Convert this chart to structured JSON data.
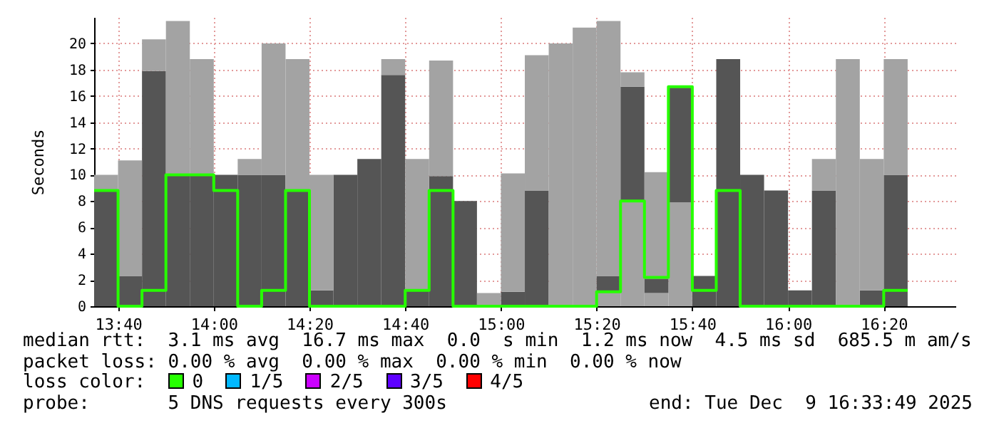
{
  "chart_data": {
    "type": "bar",
    "stacked": true,
    "ylabel": "Seconds",
    "legend_title": "loss color:",
    "legend": "bottom",
    "grid": true,
    "x": [
      13.625,
      13.7083,
      13.7917,
      13.875,
      13.9583,
      14.0417,
      14.125,
      14.2083,
      14.2917,
      14.375,
      14.4583,
      14.5417,
      14.625,
      14.7083,
      14.7917,
      14.875,
      14.9583,
      15.0417,
      15.125,
      15.2083,
      15.2917,
      15.375,
      15.4583,
      15.5417,
      15.625,
      15.7083,
      15.7917,
      15.875,
      15.9583,
      16.0417,
      16.125,
      16.2083,
      16.2917,
      16.375
    ],
    "xlim": [
      13.5833,
      16.5833
    ],
    "xticks": [
      {
        "value": 13.6667,
        "label": "13:40"
      },
      {
        "value": 14,
        "label": "14:00"
      },
      {
        "value": 14.3333,
        "label": "14:20"
      },
      {
        "value": 14.6667,
        "label": "14:40"
      },
      {
        "value": 15,
        "label": "15:00"
      },
      {
        "value": 15.3333,
        "label": "15:20"
      },
      {
        "value": 15.6667,
        "label": "15:40"
      },
      {
        "value": 16,
        "label": "16:00"
      },
      {
        "value": 16.3333,
        "label": "16:20"
      }
    ],
    "ylim": [
      0,
      22
    ],
    "yticks": [
      0,
      2,
      4,
      6,
      8,
      10,
      12,
      14,
      16,
      18,
      20
    ],
    "series": [
      {
        "color": "#555555",
        "values": [
          8.8,
          2.3,
          17.9,
          10.0,
          10.0,
          10.0,
          10.0,
          10.0,
          8.8,
          1.2,
          10.0,
          11.2,
          17.6,
          1.2,
          9.9,
          8.0,
          null,
          1.1,
          8.8,
          null,
          null,
          null,
          null,
          null,
          null,
          2.3,
          18.8,
          10.0,
          8.8,
          1.2,
          8.8,
          null,
          1.2,
          10.0
        ]
      },
      {
        "color": "#a3a3a3",
        "values": [
          1.2,
          8.8,
          2.4,
          11.7,
          8.8,
          null,
          1.2,
          10.0,
          10.0,
          8.8,
          null,
          null,
          1.2,
          10.0,
          8.8,
          null,
          1.0,
          9.0,
          10.3,
          20.0,
          21.2,
          1.1,
          8.0,
          1.0,
          7.9,
          null,
          null,
          null,
          null,
          null,
          2.4,
          18.8,
          10.0,
          8.8
        ]
      },
      {
        "color": "#555555",
        "values": [
          null,
          null,
          null,
          null,
          null,
          null,
          null,
          null,
          null,
          null,
          null,
          null,
          null,
          null,
          null,
          null,
          null,
          null,
          null,
          null,
          null,
          1.2,
          8.7,
          1.1,
          8.8,
          null,
          null,
          null,
          null,
          null,
          null,
          null,
          null,
          null
        ]
      },
      {
        "color": "#a3a3a3",
        "values": [
          null,
          null,
          null,
          null,
          null,
          null,
          null,
          null,
          null,
          null,
          null,
          null,
          null,
          null,
          null,
          null,
          null,
          null,
          null,
          null,
          null,
          19.4,
          1.1,
          8.1,
          null,
          null,
          null,
          null,
          null,
          null,
          null,
          null,
          null,
          null
        ]
      },
      {
        "type": "step",
        "name": "0",
        "color": "#26ff00",
        "x": [
          13.5833,
          13.6667,
          13.75,
          13.8333,
          13.9167,
          14,
          14.0833,
          14.1667,
          14.25,
          14.3333,
          14.4167,
          14.5,
          14.5833,
          14.6667,
          14.75,
          14.8333,
          14.9167,
          15,
          15.0833,
          15.1667,
          15.25,
          15.3333,
          15.4167,
          15.5,
          15.5833,
          15.6667,
          15.75,
          15.8333,
          15.9167,
          16,
          16.0833,
          16.1667,
          16.25,
          16.3333,
          16.4167
        ],
        "values": [
          8.8,
          0,
          1.2,
          10.0,
          10.0,
          8.8,
          0,
          1.2,
          8.8,
          0,
          0,
          0,
          0,
          1.2,
          8.8,
          0,
          0,
          0,
          0,
          0,
          0,
          1.1,
          8.0,
          2.2,
          16.7,
          1.2,
          8.8,
          0,
          0,
          0,
          0,
          0,
          0,
          1.2,
          1.2
        ]
      },
      {
        "type": "step",
        "name": "1/5",
        "color": "#00b8ff",
        "values": [
          null,
          null,
          null,
          null,
          null,
          null,
          null,
          null,
          null,
          null,
          null,
          null,
          null,
          null,
          null,
          null,
          null,
          null,
          null,
          null,
          null,
          null,
          null,
          null,
          null,
          null,
          null,
          null,
          null,
          null,
          null,
          null,
          null,
          null
        ]
      },
      {
        "type": "step",
        "name": "2/5",
        "color": "#cc00ff",
        "values": [
          null,
          null,
          null,
          null,
          null,
          null,
          null,
          null,
          null,
          null,
          null,
          null,
          null,
          null,
          null,
          null,
          null,
          null,
          null,
          null,
          null,
          null,
          null,
          null,
          null,
          null,
          null,
          null,
          null,
          null,
          null,
          null,
          null,
          null
        ]
      },
      {
        "type": "step",
        "name": "3/5",
        "color": "#5e00ff",
        "values": [
          null,
          null,
          null,
          null,
          null,
          null,
          null,
          null,
          null,
          null,
          null,
          null,
          null,
          null,
          null,
          null,
          null,
          null,
          null,
          null,
          null,
          null,
          null,
          null,
          null,
          null,
          null,
          null,
          null,
          null,
          null,
          null,
          null,
          null
        ]
      },
      {
        "type": "step",
        "name": "4/5",
        "color": "#ff0000",
        "values": [
          null,
          null,
          null,
          null,
          null,
          null,
          null,
          null,
          null,
          null,
          null,
          null,
          null,
          null,
          null,
          null,
          null,
          null,
          null,
          null,
          null,
          null,
          null,
          null,
          null,
          null,
          null,
          null,
          null,
          null,
          null,
          null,
          null,
          null
        ]
      }
    ],
    "annotations": [
      "median rtt:  3.1 ms avg  16.7 ms max  0.0  s min  1.2 ms now  4.5 ms sd  685.5 m am/s",
      "packet loss: 0.00 % avg  0.00 % max  0.00 % min  0.00 % now",
      "probe:       5 DNS requests every 300s",
      "end: Tue Dec  9 16:33:49 2025"
    ]
  }
}
